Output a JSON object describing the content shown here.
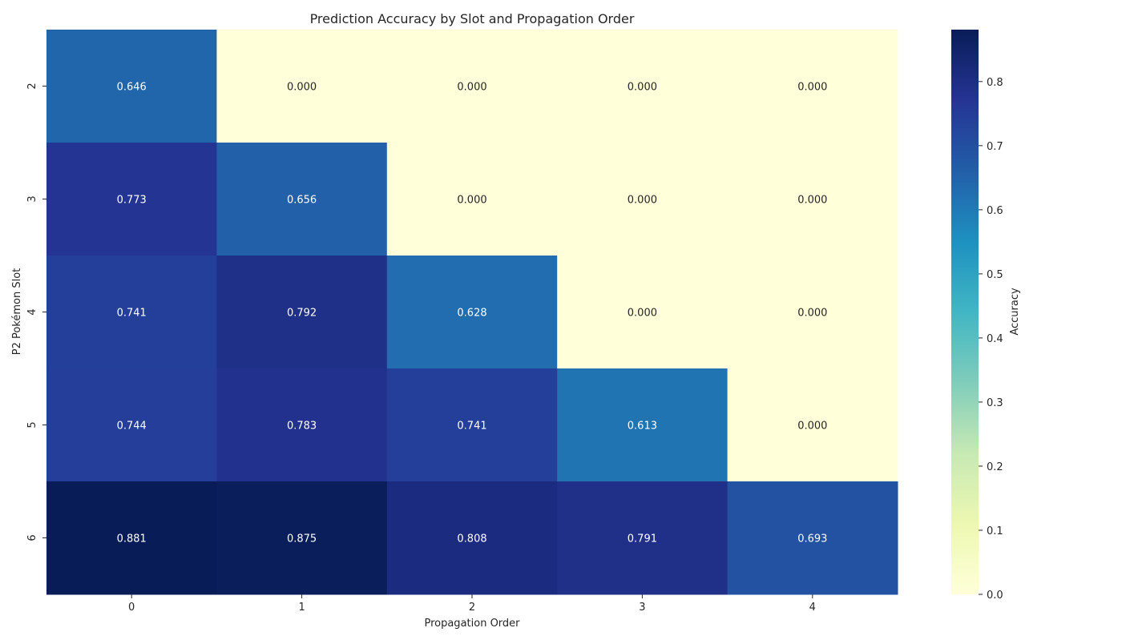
{
  "chart_data": {
    "type": "heatmap",
    "title": "Prediction Accuracy by Slot and Propagation Order",
    "xlabel": "Propagation Order",
    "ylabel": "P2 Pokémon Slot",
    "x_categories": [
      "0",
      "1",
      "2",
      "3",
      "4"
    ],
    "y_categories": [
      "2",
      "3",
      "4",
      "5",
      "6"
    ],
    "values": [
      [
        0.646,
        0.0,
        0.0,
        0.0,
        0.0
      ],
      [
        0.773,
        0.656,
        0.0,
        0.0,
        0.0
      ],
      [
        0.741,
        0.792,
        0.628,
        0.0,
        0.0
      ],
      [
        0.744,
        0.783,
        0.741,
        0.613,
        0.0
      ],
      [
        0.881,
        0.875,
        0.808,
        0.791,
        0.693
      ]
    ],
    "value_format": "0.000",
    "colormap": "YlGnBu",
    "vmin": 0.0,
    "vmax": 0.881,
    "colorbar": {
      "label": "Accuracy",
      "ticks": [
        "0.0",
        "0.1",
        "0.2",
        "0.3",
        "0.4",
        "0.5",
        "0.6",
        "0.7",
        "0.8"
      ]
    },
    "grid": false,
    "legend": "colorbar-right"
  }
}
